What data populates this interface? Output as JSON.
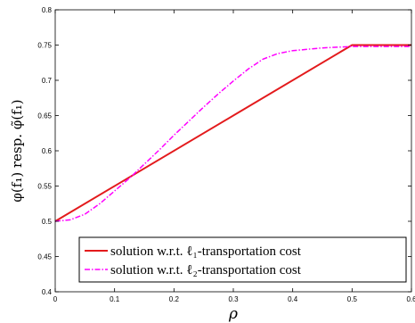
{
  "chart_data": {
    "type": "line",
    "xlabel": "ρ",
    "ylabel": "φ(f₁) resp. φ̃(f₁)",
    "xlim": [
      0,
      0.6
    ],
    "ylim": [
      0.4,
      0.8
    ],
    "xticks": [
      0,
      0.1,
      0.2,
      0.3,
      0.4,
      0.5,
      0.6
    ],
    "xtick_labels": [
      "0",
      "0.1",
      "0.2",
      "0.3",
      "0.4",
      "0.5",
      "0.6"
    ],
    "yticks": [
      0.4,
      0.45,
      0.5,
      0.55,
      0.6,
      0.65,
      0.7,
      0.75,
      0.8
    ],
    "ytick_labels": [
      "0.4",
      "0.45",
      "0.5",
      "0.55",
      "0.6",
      "0.65",
      "0.7",
      "0.75",
      "0.8"
    ],
    "grid": false,
    "legend_position": "bottom-right",
    "series": [
      {
        "name": "solution w.r.t. ℓ₁-transportation cost",
        "color": "#e31a1c",
        "style": "solid",
        "x": [
          0,
          0.5,
          0.6
        ],
        "y": [
          0.5,
          0.75,
          0.75
        ]
      },
      {
        "name": "solution w.r.t. ℓ₂-transportation cost",
        "color": "#ff00ff",
        "style": "dash-dot",
        "x": [
          0,
          0.025,
          0.05,
          0.075,
          0.1,
          0.125,
          0.15,
          0.175,
          0.2,
          0.225,
          0.25,
          0.275,
          0.3,
          0.325,
          0.35,
          0.375,
          0.4,
          0.425,
          0.45,
          0.475,
          0.5,
          0.525,
          0.55,
          0.575,
          0.6
        ],
        "y": [
          0.5,
          0.502,
          0.51,
          0.525,
          0.543,
          0.561,
          0.581,
          0.601,
          0.622,
          0.642,
          0.662,
          0.681,
          0.699,
          0.716,
          0.73,
          0.738,
          0.742,
          0.744,
          0.746,
          0.747,
          0.748,
          0.748,
          0.748,
          0.748,
          0.748
        ]
      }
    ]
  }
}
